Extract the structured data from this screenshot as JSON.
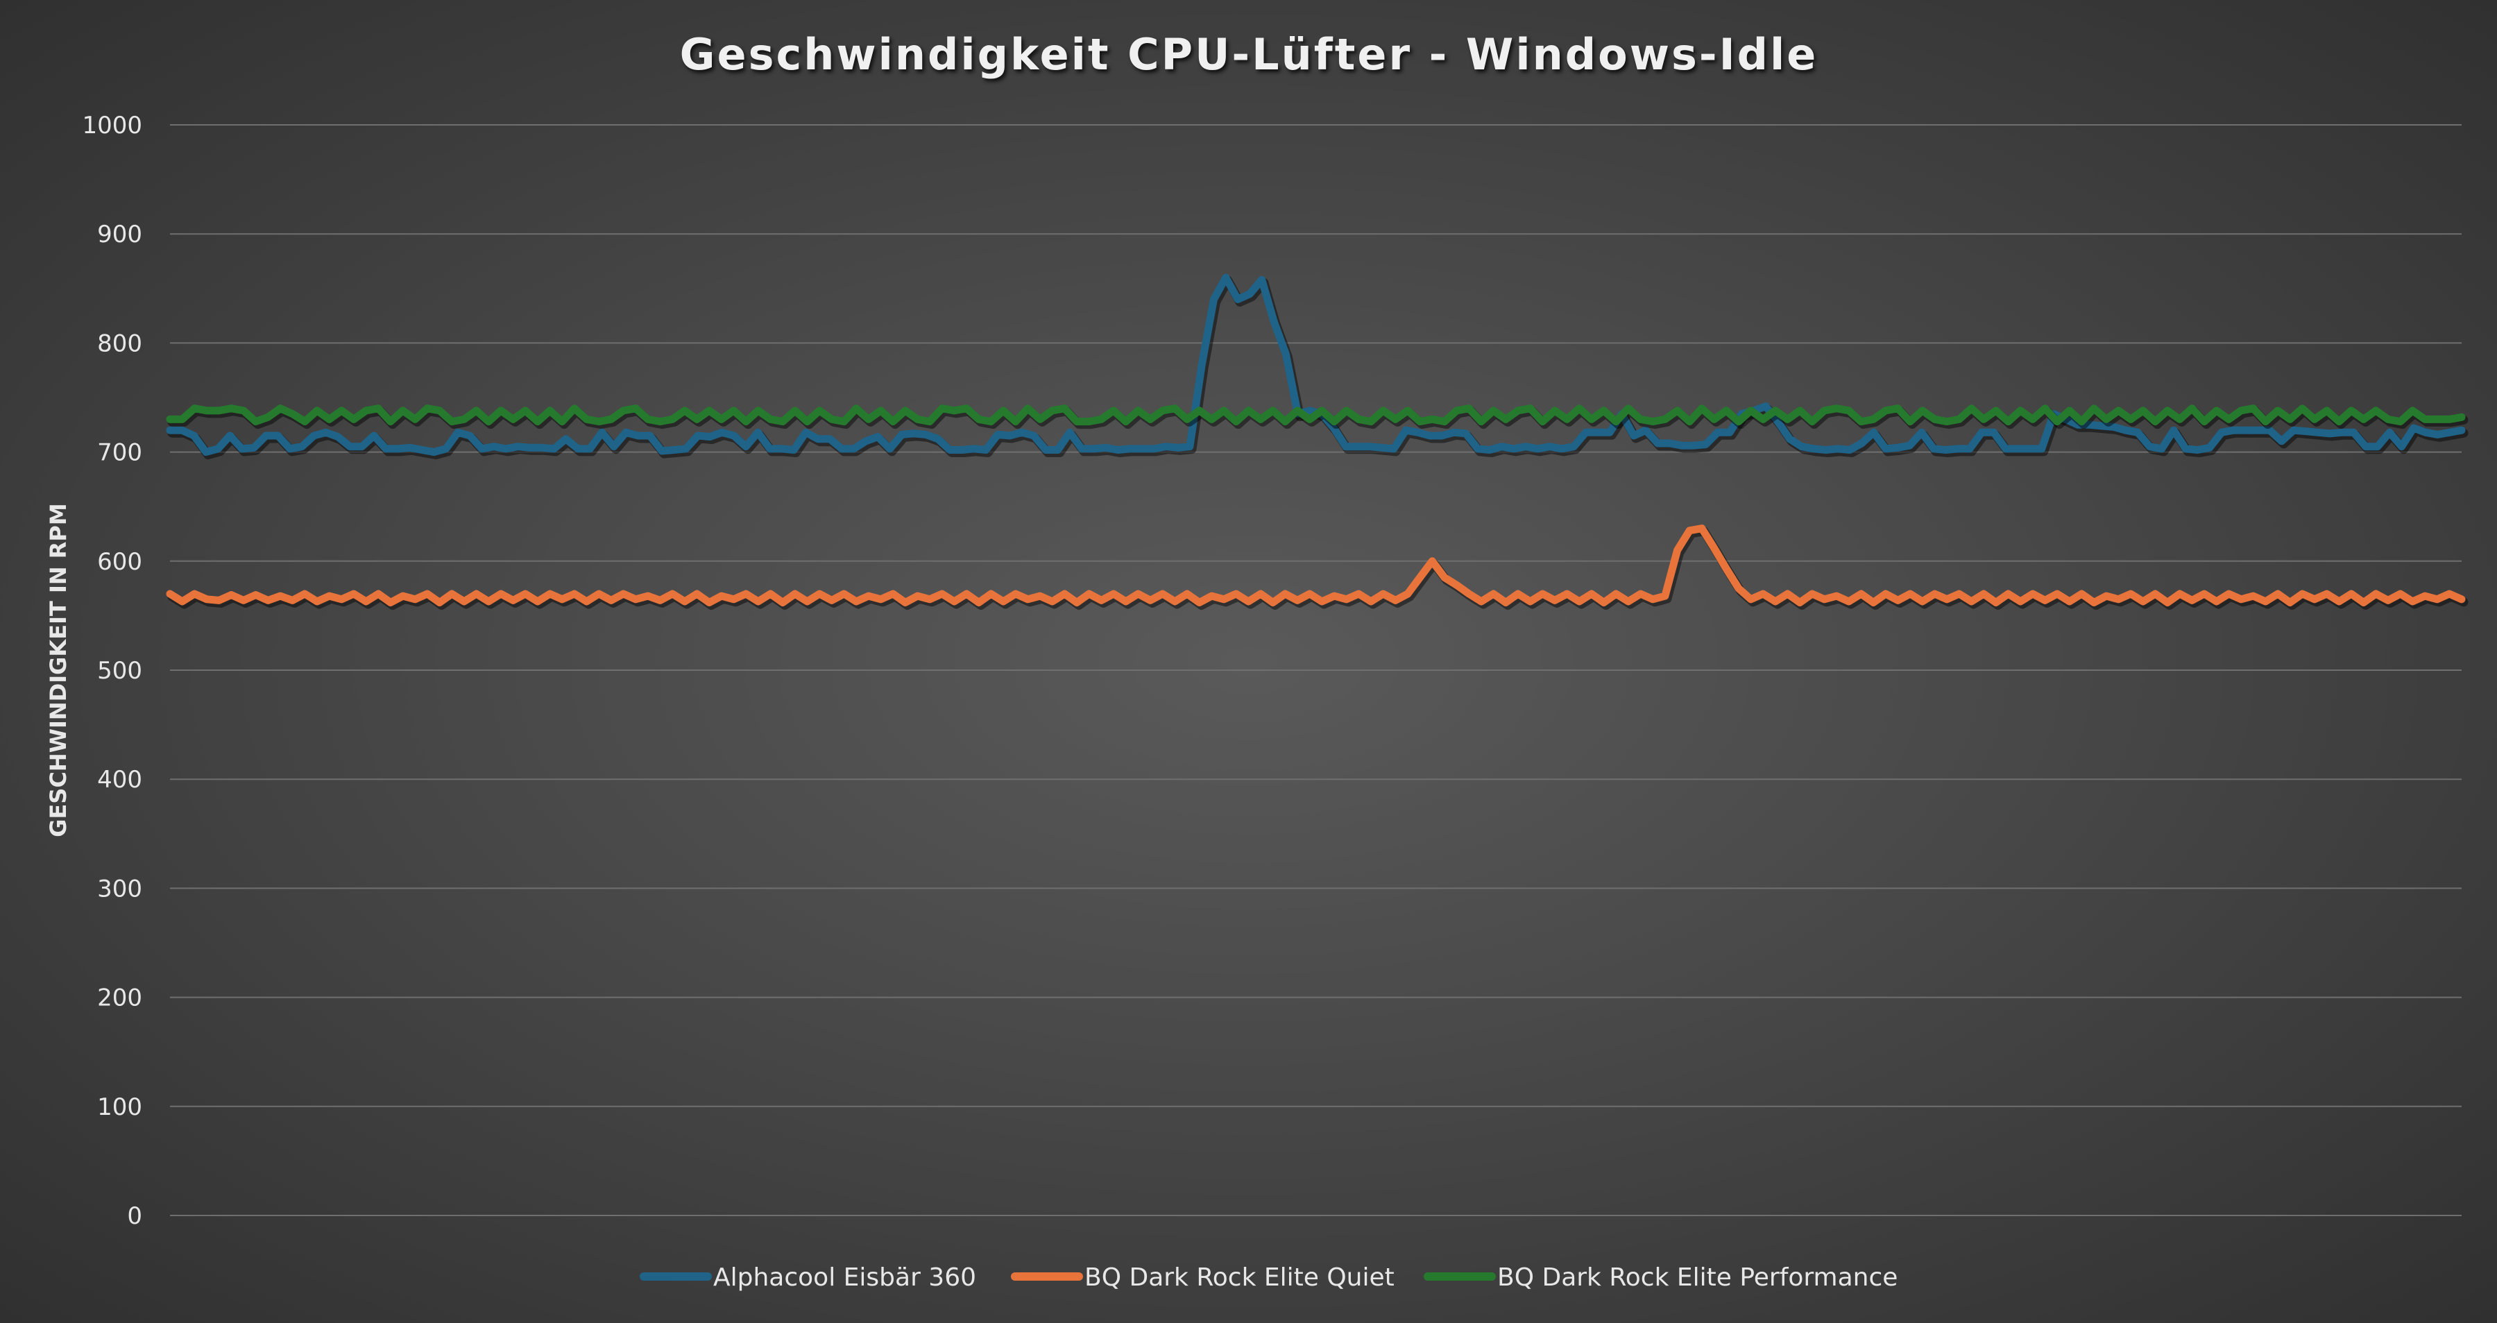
{
  "chart_data": {
    "type": "line",
    "title": "Geschwindigkeit CPU-Lüfter - Windows-Idle",
    "xlabel": "",
    "ylabel": "GESCHWINDIGKEIT IN RPM",
    "ylim": [
      0,
      1000
    ],
    "yticks": [
      0,
      100,
      200,
      300,
      400,
      500,
      600,
      700,
      800,
      900,
      1000
    ],
    "grid": true,
    "legend_position": "bottom",
    "series": [
      {
        "name": "Alphacool Eisbär 360",
        "color": "#1f6388",
        "values": [
          720,
          720,
          715,
          700,
          703,
          715,
          703,
          704,
          715,
          715,
          703,
          705,
          715,
          718,
          714,
          705,
          705,
          715,
          703,
          703,
          704,
          702,
          700,
          703,
          718,
          715,
          703,
          705,
          703,
          705,
          704,
          704,
          703,
          712,
          703,
          703,
          718,
          705,
          718,
          715,
          715,
          701,
          702,
          703,
          715,
          714,
          718,
          715,
          705,
          718,
          703,
          703,
          702,
          718,
          712,
          712,
          703,
          703,
          710,
          714,
          703,
          716,
          717,
          716,
          712,
          702,
          702,
          703,
          702,
          716,
          715,
          718,
          715,
          702,
          702,
          718,
          703,
          703,
          704,
          702,
          703,
          703,
          703,
          705,
          704,
          705,
          780,
          840,
          860,
          840,
          845,
          858,
          820,
          790,
          735,
          738,
          735,
          722,
          705,
          705,
          705,
          704,
          703,
          720,
          718,
          715,
          715,
          718,
          717,
          703,
          702,
          705,
          703,
          705,
          703,
          705,
          703,
          705,
          718,
          718,
          718,
          735,
          715,
          720,
          708,
          708,
          706,
          706,
          707,
          718,
          718,
          735,
          738,
          742,
          728,
          712,
          705,
          703,
          702,
          703,
          702,
          708,
          718,
          703,
          704,
          706,
          718,
          703,
          702,
          703,
          703,
          718,
          718,
          703,
          703,
          703,
          703,
          735,
          730,
          725,
          725,
          724,
          723,
          720,
          718,
          705,
          703,
          720,
          703,
          702,
          704,
          718,
          720,
          720,
          720,
          720,
          710,
          720,
          719,
          718,
          717,
          718,
          718,
          705,
          705,
          718,
          705,
          722,
          718,
          716,
          718,
          720
        ]
      },
      {
        "name": "BQ Dark Rock Elite Quiet",
        "color": "#e8743b",
        "values": [
          570,
          563,
          570,
          565,
          564,
          569,
          564,
          569,
          564,
          568,
          564,
          570,
          563,
          568,
          565,
          570,
          563,
          570,
          562,
          568,
          565,
          570,
          562,
          570,
          563,
          570,
          563,
          570,
          564,
          570,
          563,
          570,
          565,
          570,
          563,
          570,
          564,
          570,
          565,
          568,
          564,
          570,
          563,
          570,
          562,
          568,
          565,
          570,
          563,
          570,
          562,
          570,
          563,
          570,
          564,
          570,
          563,
          568,
          565,
          570,
          562,
          568,
          565,
          570,
          563,
          570,
          562,
          570,
          563,
          570,
          565,
          568,
          563,
          570,
          562,
          570,
          564,
          570,
          563,
          570,
          564,
          570,
          563,
          570,
          562,
          568,
          565,
          570,
          563,
          570,
          562,
          570,
          564,
          570,
          563,
          568,
          565,
          570,
          563,
          570,
          564,
          570,
          585,
          600,
          585,
          578,
          570,
          563,
          570,
          562,
          570,
          563,
          570,
          564,
          570,
          563,
          570,
          562,
          570,
          563,
          570,
          565,
          568,
          610,
          628,
          630,
          612,
          593,
          575,
          565,
          570,
          563,
          570,
          562,
          570,
          565,
          568,
          563,
          570,
          562,
          570,
          564,
          570,
          563,
          570,
          565,
          570,
          563,
          570,
          562,
          570,
          563,
          570,
          564,
          570,
          563,
          570,
          562,
          568,
          565,
          570,
          563,
          570,
          562,
          570,
          564,
          570,
          563,
          570,
          565,
          568,
          563,
          570,
          562,
          570,
          565,
          570,
          563,
          570,
          562,
          570,
          564,
          570,
          563,
          568,
          565,
          570,
          565
        ]
      },
      {
        "name": "BQ Dark Rock Elite Performance",
        "color": "#267a2e",
        "values": [
          730,
          730,
          740,
          738,
          738,
          740,
          738,
          728,
          732,
          740,
          735,
          728,
          738,
          730,
          738,
          730,
          738,
          740,
          728,
          738,
          730,
          740,
          738,
          728,
          730,
          738,
          728,
          738,
          730,
          738,
          728,
          738,
          728,
          740,
          730,
          728,
          730,
          738,
          740,
          730,
          728,
          730,
          738,
          730,
          738,
          730,
          738,
          728,
          738,
          730,
          728,
          738,
          728,
          738,
          730,
          728,
          740,
          730,
          738,
          728,
          738,
          730,
          728,
          740,
          738,
          740,
          730,
          728,
          738,
          728,
          740,
          730,
          738,
          740,
          728,
          728,
          730,
          738,
          728,
          738,
          730,
          738,
          740,
          730,
          738,
          730,
          738,
          728,
          738,
          730,
          738,
          728,
          738,
          730,
          738,
          728,
          738,
          730,
          728,
          738,
          730,
          738,
          728,
          730,
          728,
          738,
          740,
          728,
          738,
          730,
          738,
          740,
          728,
          738,
          730,
          740,
          730,
          738,
          728,
          740,
          730,
          728,
          730,
          738,
          728,
          740,
          730,
          738,
          728,
          738,
          730,
          738,
          730,
          738,
          728,
          738,
          740,
          738,
          728,
          730,
          738,
          740,
          728,
          738,
          730,
          728,
          730,
          740,
          730,
          738,
          728,
          738,
          730,
          740,
          728,
          738,
          728,
          740,
          730,
          738,
          730,
          738,
          728,
          738,
          730,
          740,
          728,
          738,
          730,
          738,
          740,
          728,
          738,
          730,
          740,
          730,
          738,
          728,
          738,
          730,
          738,
          730,
          728,
          738,
          730,
          730,
          730,
          732
        ]
      }
    ]
  }
}
